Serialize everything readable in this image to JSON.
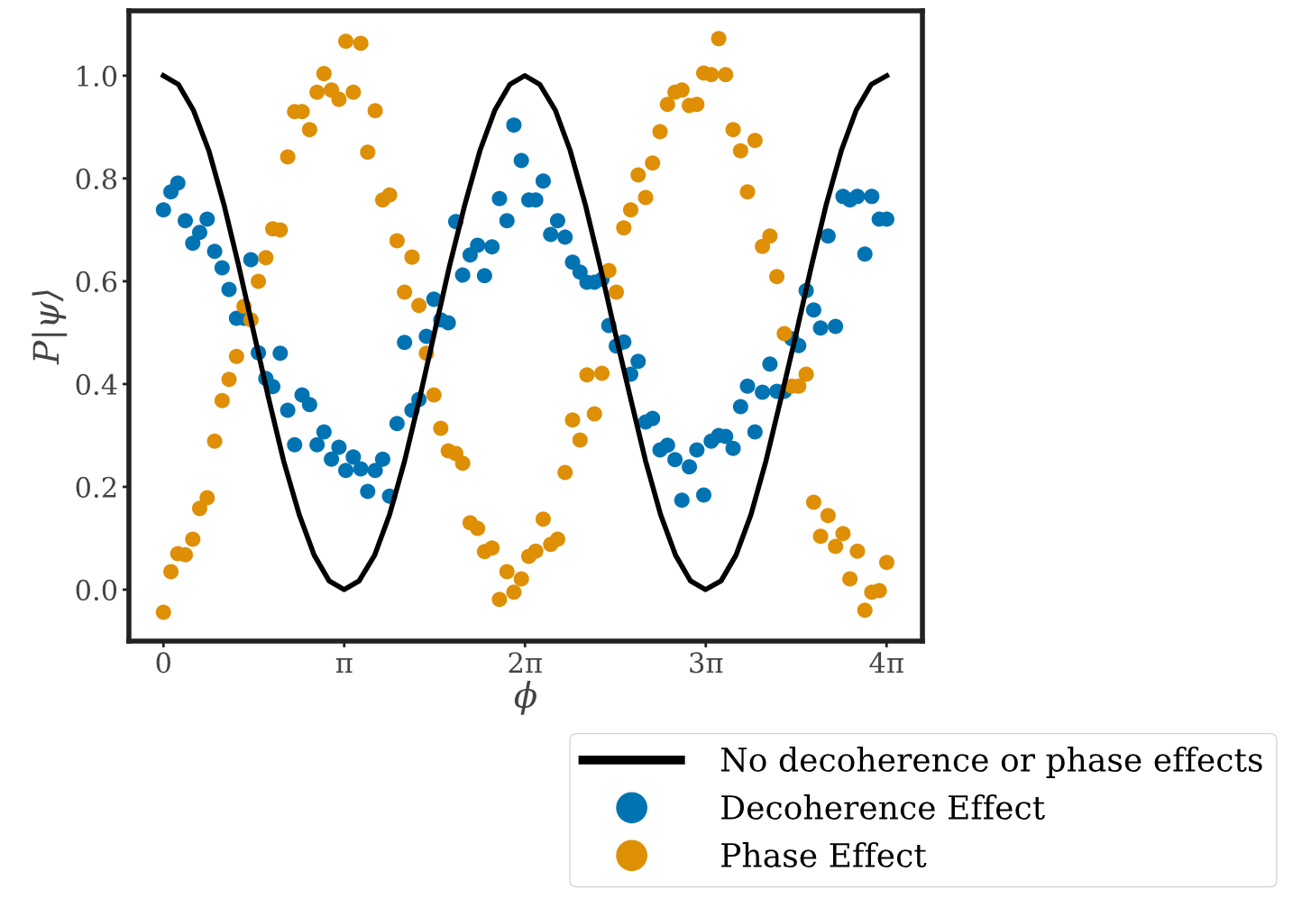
{
  "chart_data": {
    "type": "scatter",
    "xlabel": "ϕ",
    "ylabel": "P|ψ⟩",
    "xlim": [
      -0.6,
      13.19
    ],
    "ylim": [
      -0.1,
      1.126
    ],
    "xticks": [
      0,
      {
        "value": 3.1416,
        "label": "π"
      },
      {
        "value": 6.2832,
        "label": "2π"
      },
      {
        "value": 9.4248,
        "label": "3π"
      },
      {
        "value": 12.5664,
        "label": "4π"
      }
    ],
    "yticks": [
      {
        "value": 0,
        "label": "0.0"
      },
      0.2,
      0.4,
      0.6,
      0.8,
      {
        "value": 1,
        "label": "1.0"
      }
    ],
    "grid": false,
    "legend": "bottom right",
    "series": [
      {
        "name": "No decoherence or phase effects",
        "type": "line",
        "color": "#000000",
        "marker": "none",
        "line_style": "solid",
        "x": [
          0,
          0.26,
          0.52,
          0.79,
          1.05,
          1.31,
          1.57,
          1.83,
          2.09,
          2.36,
          2.62,
          2.88,
          3.14,
          3.4,
          3.67,
          3.93,
          4.19,
          4.45,
          4.71,
          4.97,
          5.24,
          5.5,
          5.76,
          6.02,
          6.28,
          6.54,
          6.81,
          7.07,
          7.33,
          7.59,
          7.85,
          8.12,
          8.38,
          8.64,
          8.9,
          9.16,
          9.42,
          9.69,
          9.95,
          10.21,
          10.47,
          10.73,
          11.0,
          11.26,
          11.52,
          11.78,
          12.04,
          12.3,
          12.57
        ],
        "values": [
          1,
          0.983,
          0.933,
          0.854,
          0.75,
          0.629,
          0.5,
          0.371,
          0.25,
          0.146,
          0.067,
          0.017,
          0,
          0.017,
          0.067,
          0.146,
          0.25,
          0.371,
          0.5,
          0.629,
          0.75,
          0.854,
          0.933,
          0.983,
          1,
          0.983,
          0.933,
          0.854,
          0.75,
          0.629,
          0.5,
          0.371,
          0.25,
          0.146,
          0.067,
          0.017,
          0,
          0.017,
          0.067,
          0.146,
          0.25,
          0.371,
          0.5,
          0.629,
          0.75,
          0.854,
          0.933,
          0.983,
          1
        ]
      },
      {
        "name": "Decoherence Effect",
        "color": "#0173b2",
        "marker": "circle",
        "x": [
          0,
          0.13,
          0.25,
          0.38,
          0.51,
          0.63,
          0.76,
          0.89,
          1.02,
          1.14,
          1.27,
          1.4,
          1.52,
          1.65,
          1.78,
          1.9,
          2.03,
          2.16,
          2.28,
          2.41,
          2.54,
          2.67,
          2.79,
          2.92,
          3.05,
          3.17,
          3.3,
          3.43,
          3.55,
          3.68,
          3.81,
          3.93,
          4.06,
          4.19,
          4.32,
          4.44,
          4.57,
          4.7,
          4.82,
          4.95,
          5.08,
          5.2,
          5.33,
          5.46,
          5.58,
          5.71,
          5.84,
          5.97,
          6.09,
          6.22,
          6.35,
          6.47,
          6.6,
          6.73,
          6.85,
          6.98,
          7.11,
          7.24,
          7.36,
          7.49,
          7.62,
          7.74,
          7.87,
          8.0,
          8.12,
          8.25,
          8.38,
          8.5,
          8.63,
          8.76,
          8.89,
          9.01,
          9.14,
          9.27,
          9.39,
          9.52,
          9.65,
          9.77,
          9.9,
          10.03,
          10.15,
          10.28,
          10.41,
          10.54,
          10.66,
          10.79,
          10.92,
          11.04,
          11.17,
          11.3,
          11.42,
          11.55,
          11.68,
          11.81,
          11.93,
          12.06,
          12.19,
          12.31,
          12.44,
          12.57
        ],
        "values": [
          0.739,
          0.774,
          0.791,
          0.718,
          0.674,
          0.695,
          0.721,
          0.658,
          0.626,
          0.584,
          0.528,
          0.528,
          0.642,
          0.461,
          0.411,
          0.395,
          0.46,
          0.349,
          0.282,
          0.379,
          0.36,
          0.282,
          0.307,
          0.254,
          0.277,
          0.232,
          0.258,
          0.235,
          0.191,
          0.232,
          0.254,
          0.182,
          0.323,
          0.481,
          0.349,
          0.37,
          0.493,
          0.565,
          0.525,
          0.519,
          0.716,
          0.612,
          0.651,
          0.67,
          0.611,
          0.667,
          0.761,
          0.718,
          0.904,
          0.835,
          0.758,
          0.758,
          0.795,
          0.691,
          0.718,
          0.686,
          0.637,
          0.618,
          0.598,
          0.598,
          0.604,
          0.514,
          0.474,
          0.482,
          0.419,
          0.444,
          0.326,
          0.333,
          0.272,
          0.281,
          0.253,
          0.174,
          0.239,
          0.272,
          0.184,
          0.289,
          0.3,
          0.298,
          0.275,
          0.356,
          0.396,
          0.307,
          0.384,
          0.439,
          0.386,
          0.386,
          0.488,
          0.475,
          0.582,
          0.544,
          0.509,
          0.688,
          0.512,
          0.765,
          0.758,
          0.765,
          0.653,
          0.765,
          0.721,
          0.721
        ]
      },
      {
        "name": "Phase Effect",
        "color": "#de8f05",
        "marker": "circle",
        "x": [
          0,
          0.13,
          0.25,
          0.38,
          0.51,
          0.63,
          0.76,
          0.89,
          1.02,
          1.14,
          1.27,
          1.4,
          1.52,
          1.65,
          1.78,
          1.9,
          2.03,
          2.16,
          2.28,
          2.41,
          2.54,
          2.67,
          2.79,
          2.92,
          3.05,
          3.17,
          3.3,
          3.43,
          3.55,
          3.68,
          3.81,
          3.93,
          4.06,
          4.19,
          4.32,
          4.44,
          4.57,
          4.7,
          4.82,
          4.95,
          5.08,
          5.2,
          5.33,
          5.46,
          5.58,
          5.71,
          5.84,
          5.97,
          6.09,
          6.22,
          6.35,
          6.47,
          6.6,
          6.73,
          6.85,
          6.98,
          7.11,
          7.24,
          7.36,
          7.49,
          7.62,
          7.74,
          7.87,
          8.0,
          8.12,
          8.25,
          8.38,
          8.5,
          8.63,
          8.76,
          8.89,
          9.01,
          9.14,
          9.27,
          9.39,
          9.52,
          9.65,
          9.77,
          9.9,
          10.03,
          10.15,
          10.28,
          10.41,
          10.54,
          10.66,
          10.79,
          10.92,
          11.04,
          11.17,
          11.3,
          11.42,
          11.55,
          11.68,
          11.81,
          11.93,
          12.06,
          12.19,
          12.31,
          12.44,
          12.57
        ],
        "values": [
          -0.044,
          0.035,
          0.07,
          0.068,
          0.098,
          0.158,
          0.179,
          0.289,
          0.368,
          0.409,
          0.454,
          0.551,
          0.525,
          0.6,
          0.646,
          0.702,
          0.7,
          0.842,
          0.93,
          0.93,
          0.895,
          0.968,
          1.004,
          0.972,
          0.954,
          1.067,
          0.968,
          1.063,
          0.851,
          0.932,
          0.758,
          0.768,
          0.679,
          0.579,
          0.647,
          0.553,
          0.46,
          0.379,
          0.314,
          0.27,
          0.265,
          0.246,
          0.13,
          0.119,
          0.074,
          0.081,
          -0.019,
          0.035,
          -0.005,
          0.021,
          0.065,
          0.075,
          0.137,
          0.088,
          0.098,
          0.228,
          0.33,
          0.291,
          0.418,
          0.342,
          0.421,
          0.621,
          0.579,
          0.704,
          0.739,
          0.807,
          0.763,
          0.83,
          0.891,
          0.944,
          0.968,
          0.972,
          0.942,
          0.944,
          1.005,
          1.002,
          1.072,
          1.002,
          0.895,
          0.854,
          0.774,
          0.874,
          0.668,
          0.688,
          0.609,
          0.498,
          0.396,
          0.396,
          0.419,
          0.17,
          0.104,
          0.144,
          0.084,
          0.109,
          0.021,
          0.075,
          -0.04,
          -0.005,
          -0.002,
          0.053
        ]
      }
    ]
  }
}
